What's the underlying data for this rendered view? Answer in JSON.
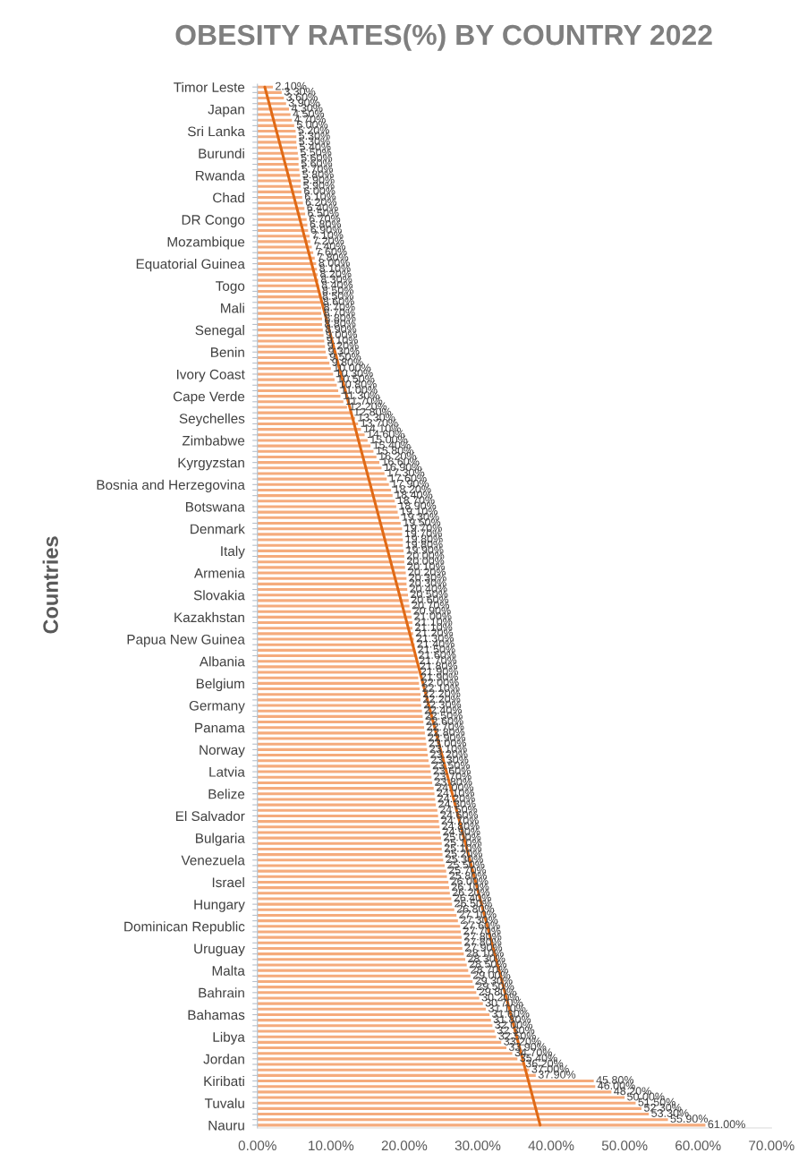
{
  "chart_data": {
    "type": "bar",
    "orientation": "horizontal",
    "title": "OBESITY RATES(%) BY COUNTRY 2022",
    "ylabel": "Countries",
    "categories": [
      "Timor Leste",
      null,
      null,
      null,
      "Japan",
      null,
      null,
      null,
      "Sri Lanka",
      null,
      null,
      null,
      "Burundi",
      null,
      null,
      null,
      "Rwanda",
      null,
      null,
      null,
      "Chad",
      null,
      null,
      null,
      "DR Congo",
      null,
      null,
      null,
      "Mozambique",
      null,
      null,
      null,
      "Equatorial Guinea",
      null,
      null,
      null,
      "Togo",
      null,
      null,
      null,
      "Mali",
      null,
      null,
      null,
      "Senegal",
      null,
      null,
      null,
      "Benin",
      null,
      null,
      null,
      "Ivory Coast",
      null,
      null,
      null,
      "Cape Verde",
      null,
      null,
      null,
      "Seychelles",
      null,
      null,
      null,
      "Zimbabwe",
      null,
      null,
      null,
      "Kyrgyzstan",
      null,
      null,
      null,
      "Bosnia and Herzegovina",
      null,
      null,
      null,
      "Botswana",
      null,
      null,
      null,
      "Denmark",
      null,
      null,
      null,
      "Italy",
      null,
      null,
      null,
      "Armenia",
      null,
      null,
      null,
      "Slovakia",
      null,
      null,
      null,
      "Kazakhstan",
      null,
      null,
      null,
      "Papua New Guinea",
      null,
      null,
      null,
      "Albania",
      null,
      null,
      null,
      "Belgium",
      null,
      null,
      null,
      "Germany",
      null,
      null,
      null,
      "Panama",
      null,
      null,
      null,
      "Norway",
      null,
      null,
      null,
      "Latvia",
      null,
      null,
      null,
      "Belize",
      null,
      null,
      null,
      "El Salvador",
      null,
      null,
      null,
      "Bulgaria",
      null,
      null,
      null,
      "Venezuela",
      null,
      null,
      null,
      "Israel",
      null,
      null,
      null,
      "Hungary",
      null,
      null,
      null,
      "Dominican Republic",
      null,
      null,
      null,
      "Uruguay",
      null,
      null,
      null,
      "Malta",
      null,
      null,
      null,
      "Bahrain",
      null,
      null,
      null,
      "Bahamas",
      null,
      null,
      null,
      "Libya",
      null,
      null,
      null,
      "Jordan",
      null,
      null,
      null,
      "Kiribati",
      null,
      null,
      null,
      "Tuvalu",
      null,
      null,
      null,
      "Nauru"
    ],
    "series": [
      {
        "color": "#f5ab7c",
        "values": [
          2.1,
          3.3,
          3.6,
          3.9,
          4.3,
          4.5,
          4.7,
          5.0,
          5.2,
          5.3,
          5.3,
          5.4,
          5.5,
          5.6,
          5.6,
          5.7,
          5.8,
          5.9,
          5.9,
          6.0,
          6.1,
          6.2,
          6.4,
          6.5,
          6.7,
          6.8,
          6.9,
          7.1,
          7.2,
          7.4,
          7.6,
          7.8,
          8.0,
          8.1,
          8.2,
          8.3,
          8.4,
          8.5,
          8.5,
          8.6,
          8.7,
          8.7,
          8.8,
          8.8,
          8.9,
          9.0,
          9.1,
          9.2,
          9.3,
          9.5,
          9.8,
          10.0,
          10.3,
          10.5,
          10.8,
          11.0,
          11.3,
          11.7,
          12.2,
          12.8,
          13.3,
          13.7,
          14.1,
          14.6,
          15.0,
          15.4,
          15.8,
          16.2,
          16.6,
          16.9,
          17.3,
          17.6,
          17.9,
          18.2,
          18.4,
          18.7,
          18.9,
          19.1,
          19.3,
          19.5,
          19.7,
          19.7,
          19.8,
          19.8,
          19.9,
          20.0,
          20.0,
          20.1,
          20.2,
          20.3,
          20.3,
          20.4,
          20.5,
          20.6,
          20.7,
          20.9,
          21.0,
          21.1,
          21.1,
          21.2,
          21.3,
          21.4,
          21.5,
          21.6,
          21.7,
          21.8,
          21.9,
          21.9,
          22.0,
          22.1,
          22.2,
          22.2,
          22.3,
          22.4,
          22.5,
          22.6,
          22.7,
          22.8,
          22.9,
          23.0,
          23.1,
          23.2,
          23.3,
          23.5,
          23.6,
          23.7,
          23.8,
          24.0,
          24.1,
          24.2,
          24.3,
          24.5,
          24.6,
          24.7,
          24.8,
          24.9,
          25.0,
          25.1,
          25.1,
          25.2,
          25.3,
          25.5,
          25.7,
          25.8,
          26.0,
          26.1,
          26.2,
          26.4,
          26.5,
          26.8,
          27.1,
          27.3,
          27.6,
          27.7,
          27.8,
          27.8,
          27.9,
          28.1,
          28.3,
          28.5,
          28.7,
          29.0,
          29.3,
          29.5,
          29.8,
          30.2,
          30.7,
          31.1,
          31.6,
          31.8,
          32.0,
          32.3,
          32.5,
          33.2,
          33.9,
          34.7,
          35.4,
          36.2,
          37.0,
          37.9,
          45.8,
          46.0,
          48.2,
          50.0,
          51.5,
          52.3,
          53.3,
          55.9,
          61.0
        ],
        "value_labels": [
          "2.10%",
          "3.30%",
          "3.60%",
          "3.90%",
          "4.30%",
          "4.50%",
          "4.70%",
          "5.00%",
          "5.20%",
          "5.30%",
          "5.30%",
          "5.40%",
          "5.50%",
          "5.60%",
          "5.60%",
          "5.70%",
          "5.80%",
          "5.90%",
          "5.90%",
          "6.00%",
          "6.10%",
          "6.20%",
          "6.40%",
          "6.50%",
          "6.70%",
          "6.80%",
          "6.90%",
          "7.10%",
          "7.20%",
          "7.40%",
          "7.60%",
          "7.80%",
          "8.00%",
          "8.10%",
          "8.20%",
          "8.30%",
          "8.40%",
          "8.50%",
          "8.50%",
          "8.60%",
          "8.70%",
          "8.70%",
          "8.80%",
          "8.80%",
          "8.90%",
          "9.00%",
          "9.10%",
          "9.20%",
          "9.30%",
          "9.50%",
          "9.80%",
          "10.00%",
          "10.30%",
          "10.50%",
          "10.80%",
          "11.00%",
          "11.30%",
          "11.70%",
          "12.20%",
          "12.80%",
          "13.30%",
          "13.70%",
          "14.10%",
          "14.60%",
          "15.00%",
          "15.40%",
          "15.80%",
          "16.20%",
          "16.60%",
          "16.90%",
          "17.30%",
          "17.60%",
          "17.90%",
          "18.20%",
          "18.40%",
          "18.70%",
          "18.90%",
          "19.10%",
          "19.30%",
          "19.50%",
          "19.70%",
          "19.70%",
          "19.80%",
          "19.80%",
          "19.90%",
          "20.00%",
          "20.00%",
          "20.10%",
          "20.20%",
          "20.30%",
          "20.30%",
          "20.40%",
          "20.50%",
          "20.60%",
          "20.70%",
          "20.90%",
          "21.00%",
          "21.10%",
          "21.10%",
          "21.20%",
          "21.30%",
          "21.40%",
          "21.50%",
          "21.60%",
          "21.70%",
          "21.80%",
          "21.90%",
          "21.90%",
          "22.00%",
          "22.10%",
          "22.20%",
          "22.20%",
          "22.30%",
          "22.40%",
          "22.50%",
          "22.60%",
          "22.70%",
          "22.80%",
          "22.90%",
          "23.00%",
          "23.10%",
          "23.20%",
          "23.30%",
          "23.50%",
          "23.60%",
          "23.70%",
          "23.80%",
          "24.00%",
          "24.10%",
          "24.20%",
          "24.30%",
          "24.50%",
          "24.60%",
          "24.70%",
          "24.80%",
          "24.90%",
          "25.00%",
          "25.10%",
          "25.10%",
          "25.20%",
          "25.30%",
          "25.50%",
          "25.70%",
          "25.80%",
          "26.00%",
          "26.10%",
          "26.20%",
          "26.40%",
          "26.50%",
          "26.80%",
          "27.10%",
          "27.30%",
          "27.60%",
          "27.70%",
          "27.80%",
          "27.80%",
          "27.90%",
          "28.10%",
          "28.30%",
          "28.50%",
          "28.70%",
          "29.00%",
          "29.30%",
          "29.50%",
          "29.80%",
          "30.20%",
          "30.70%",
          "31.10%",
          "31.60%",
          "31.80%",
          "32.00%",
          "32.30%",
          "32.50%",
          "33.20%",
          "33.90%",
          "34.70%",
          "35.40%",
          "36.20%",
          "37.00%",
          "37.90%",
          "45.80%",
          "46.00%",
          "48.20%",
          "50.00%",
          "51.50%",
          "52.30%",
          "53.30%",
          "55.90%",
          "61.00%"
        ]
      },
      {
        "type": "line",
        "color": "#e06a16",
        "values": [
          1.0,
          null,
          null,
          null,
          null,
          null,
          null,
          null,
          null,
          null,
          null,
          null,
          null,
          null,
          null,
          null,
          null,
          null,
          null,
          null,
          null,
          null,
          null,
          null,
          null,
          null,
          null,
          null,
          null,
          null,
          null,
          null,
          null,
          null,
          null,
          null,
          null,
          null,
          null,
          null,
          null,
          null,
          null,
          null,
          null,
          null,
          null,
          null,
          null,
          null,
          null,
          null,
          null,
          null,
          null,
          null,
          null,
          null,
          null,
          null,
          null,
          null,
          null,
          null,
          null,
          null,
          null,
          null,
          null,
          null,
          null,
          null,
          null,
          null,
          null,
          null,
          null,
          null,
          null,
          null,
          null,
          null,
          null,
          null,
          null,
          null,
          null,
          null,
          null,
          null,
          null,
          null,
          null,
          null,
          null,
          null,
          null,
          null,
          null,
          null,
          null,
          null,
          null,
          null,
          null,
          null,
          null,
          null,
          null,
          null,
          null,
          null,
          null,
          null,
          null,
          null,
          null,
          null,
          null,
          null,
          null,
          null,
          null,
          null,
          null,
          null,
          null,
          null,
          null,
          null,
          null,
          null,
          null,
          null,
          null,
          null,
          null,
          null,
          null,
          null,
          null,
          null,
          null,
          null,
          null,
          null,
          null,
          null,
          null,
          null,
          null,
          null,
          null,
          null,
          null,
          null,
          null,
          null,
          null,
          null,
          null,
          null,
          null,
          null,
          null,
          null,
          null,
          null,
          null,
          null,
          null,
          null,
          null,
          null,
          null,
          null,
          null,
          null,
          null,
          null,
          null,
          null,
          null,
          null,
          null,
          null,
          null,
          null,
          38.5
        ]
      }
    ],
    "xlim": [
      0,
      70
    ],
    "xticks": [
      {
        "value": 0,
        "label": "0.00%"
      },
      {
        "value": 10,
        "label": "10.00%"
      },
      {
        "value": 20,
        "label": "20.00%"
      },
      {
        "value": 30,
        "label": "30.00%"
      },
      {
        "value": 40,
        "label": "40.00%"
      },
      {
        "value": 50,
        "label": "50.00%"
      },
      {
        "value": 60,
        "label": "60.00%"
      },
      {
        "value": 70,
        "label": "70.00%"
      }
    ]
  }
}
